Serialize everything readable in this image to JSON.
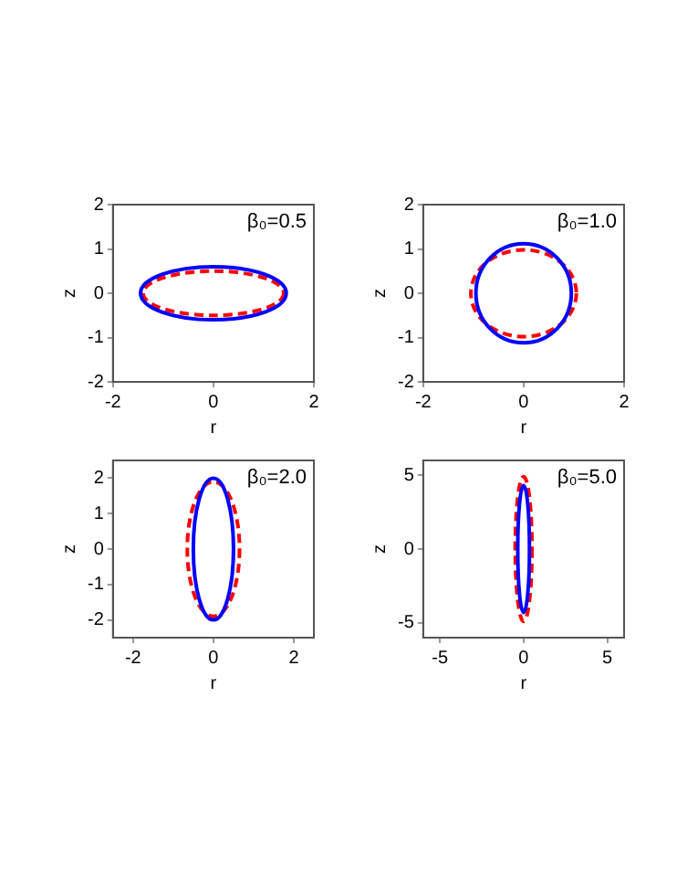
{
  "chart_data": [
    {
      "type": "line",
      "xlabel": "r",
      "ylabel": "z",
      "annotations": [
        "β₀=0.5"
      ],
      "xlim": [
        -2,
        2
      ],
      "ylim": [
        -2,
        2
      ],
      "xticks": [
        -2,
        0,
        2
      ],
      "yticks": [
        -2,
        -1,
        0,
        1,
        2
      ],
      "legend": false,
      "grid": false
    },
    {
      "type": "line",
      "xlabel": "r",
      "ylabel": "z",
      "annotations": [
        "β₀=1.0"
      ],
      "xlim": [
        -2,
        2
      ],
      "ylim": [
        -2,
        2
      ],
      "xticks": [
        -2,
        0,
        2
      ],
      "yticks": [
        -2,
        -1,
        0,
        1,
        2
      ],
      "legend": false,
      "grid": false
    },
    {
      "type": "line",
      "xlabel": "r",
      "ylabel": "z",
      "annotations": [
        "β₀=2.0"
      ],
      "xlim": [
        -2.5,
        2.5
      ],
      "ylim": [
        -2.5,
        2.5
      ],
      "xticks": [
        -2,
        0,
        2
      ],
      "yticks": [
        -2,
        -1,
        0,
        1,
        2
      ],
      "legend": false,
      "grid": false
    },
    {
      "type": "line",
      "xlabel": "r",
      "ylabel": "z",
      "annotations": [
        "β₀=5.0"
      ],
      "xlim": [
        -6,
        6
      ],
      "ylim": [
        -6,
        6
      ],
      "xticks": [
        -5,
        0,
        5
      ],
      "yticks": [
        -5,
        0,
        5
      ],
      "legend": false,
      "grid": false
    }
  ]
}
